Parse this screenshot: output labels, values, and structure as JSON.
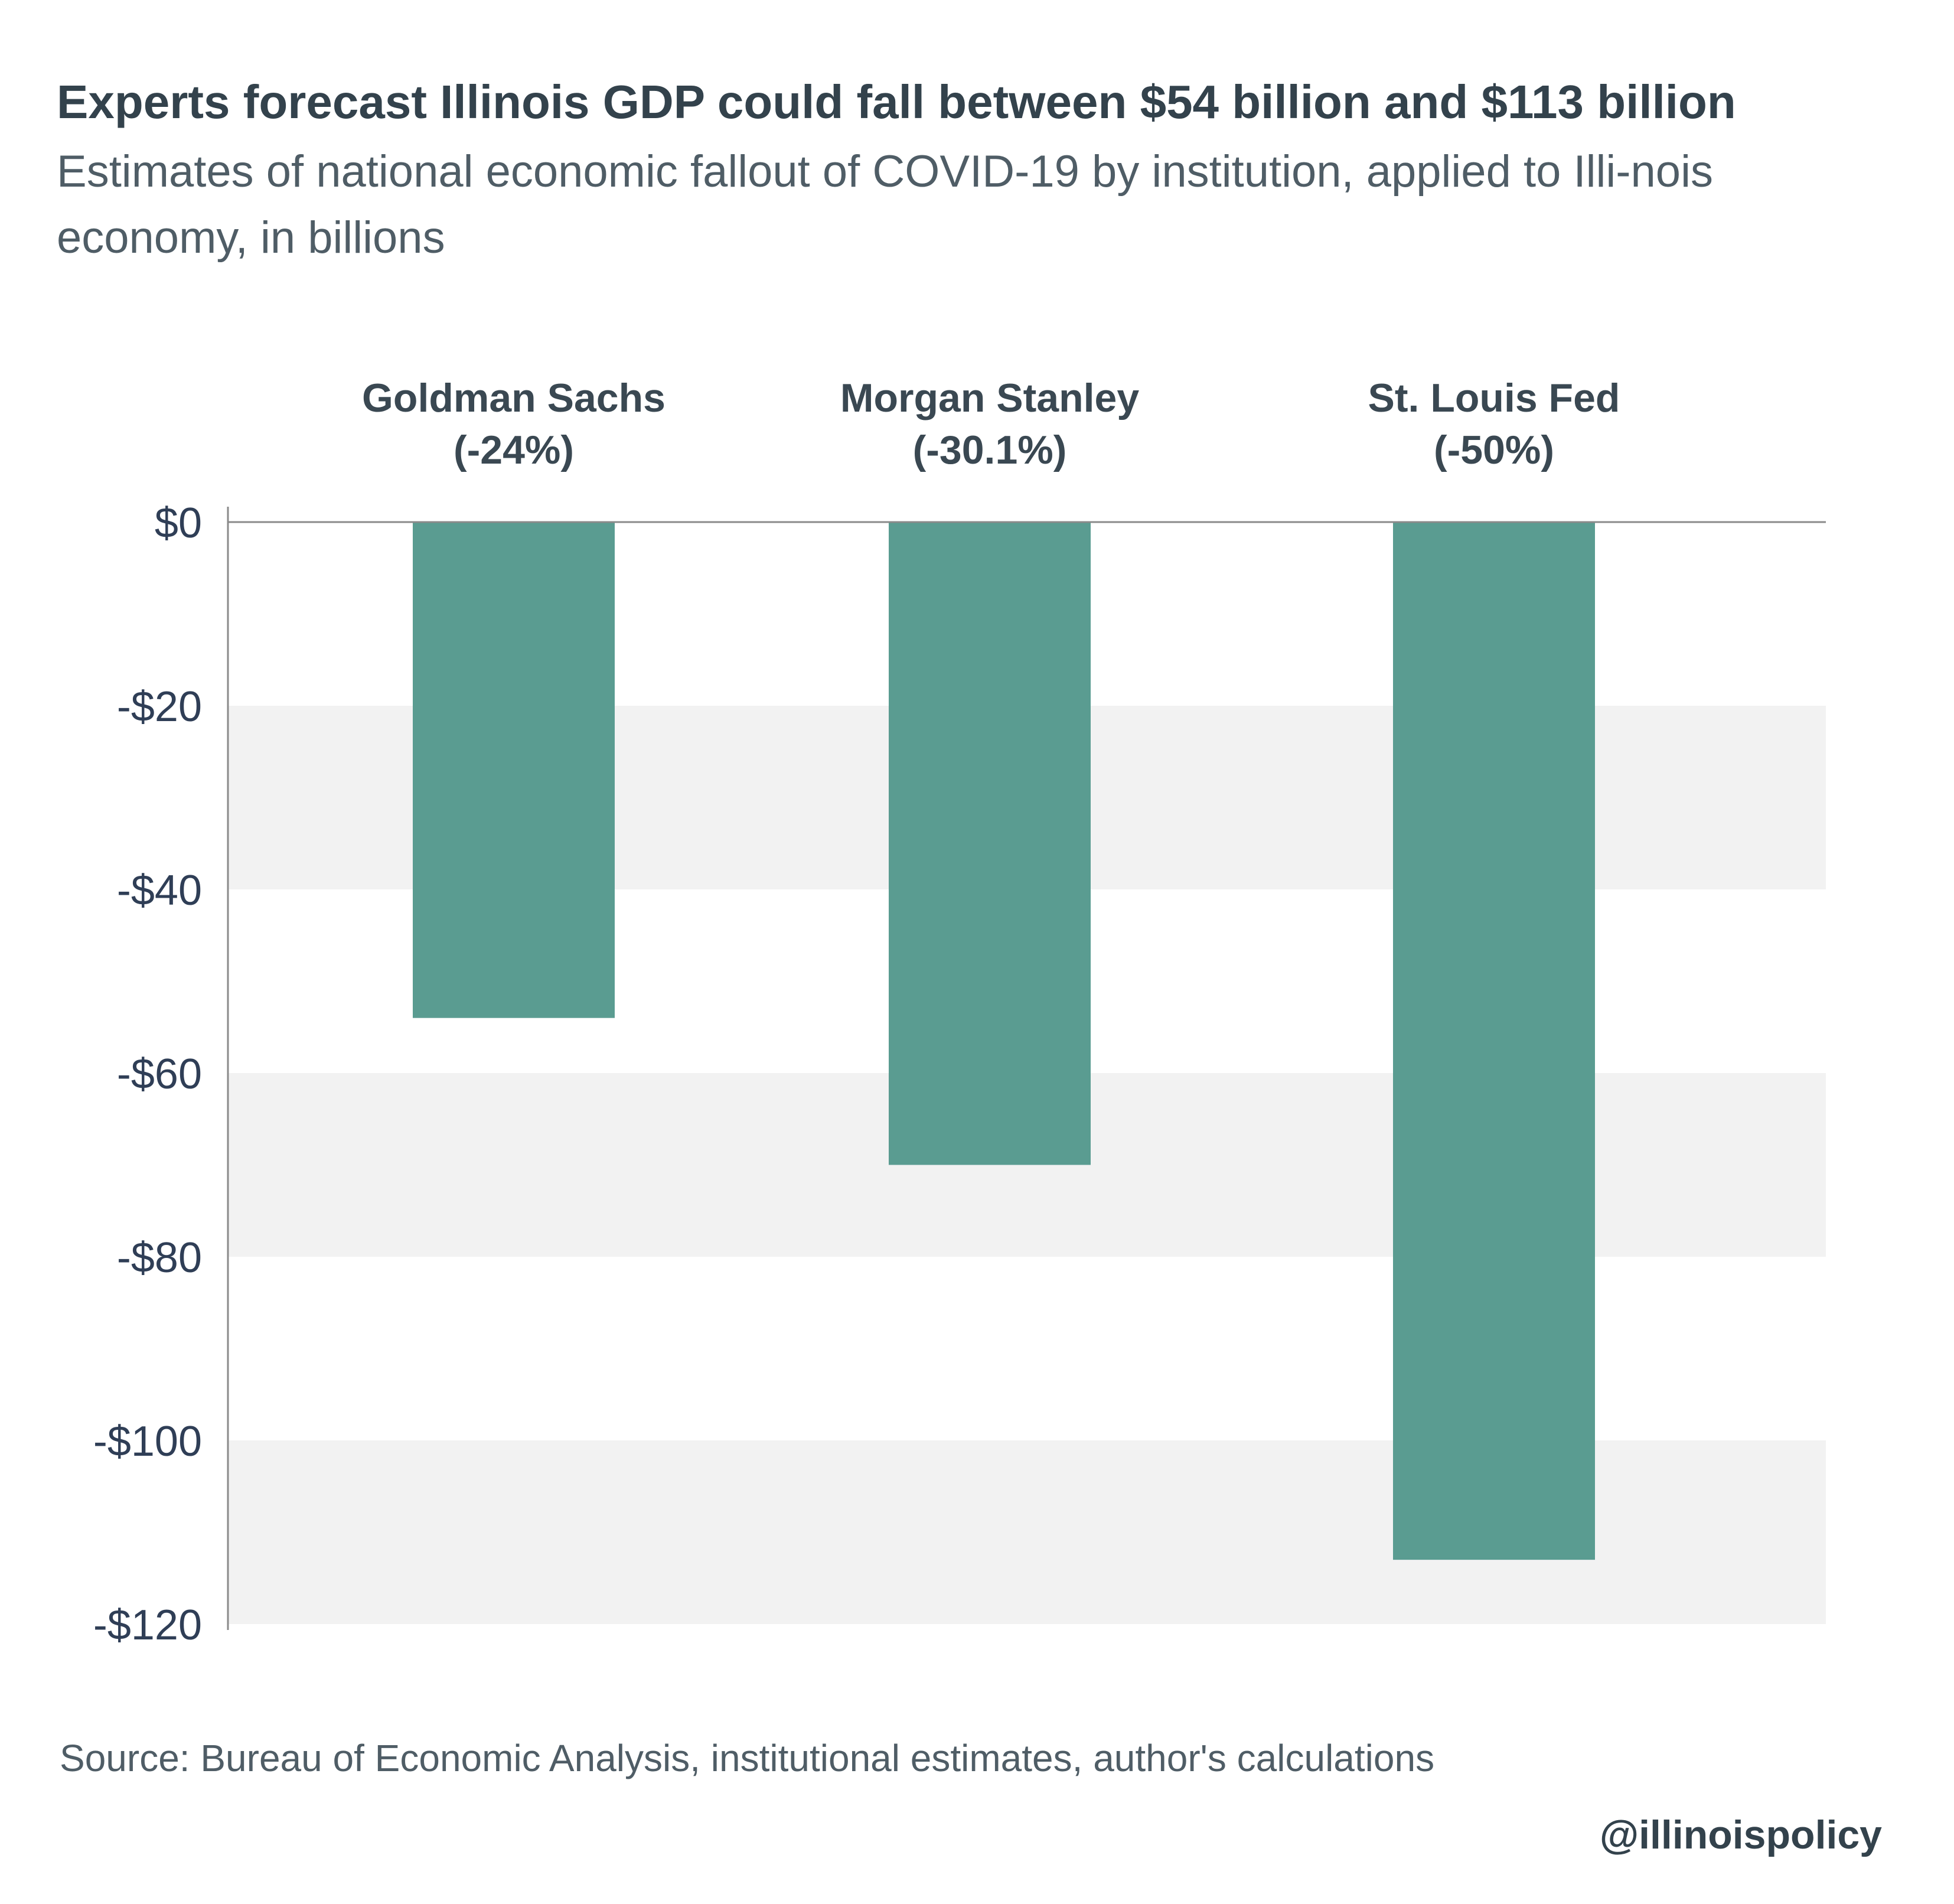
{
  "header": {
    "title": "Experts forecast Illinois GDP could fall between $54 billion and $113 billion",
    "subtitle": "Estimates of national economic fallout of COVID-19 by institution, applied to Illi-nois economy, in billions"
  },
  "footer": {
    "source": "Source: Bureau of Economic Analysis, institutional estimates, author's calculations",
    "handle": "@illinoispolicy"
  },
  "colors": {
    "bar": "#5a9c91",
    "band": "#f2f2f2",
    "axis": "#8a8a8a",
    "text": "#33424c"
  },
  "chart_data": {
    "type": "bar",
    "title": "Experts forecast Illinois GDP could fall between $54 billion and $113 billion",
    "subtitle": "Estimates of national economic fallout of COVID-19 by institution, applied to Illi-nois economy, in billions",
    "categories": [
      "Goldman Sachs",
      "Morgan Stanley",
      "St. Louis Fed"
    ],
    "category_sublabels": [
      "(-24%)",
      "(-30.1%)",
      "(-50%)"
    ],
    "values": [
      -54,
      -70,
      -113
    ],
    "ylim": [
      -120,
      0
    ],
    "yticks": [
      0,
      -20,
      -40,
      -60,
      -80,
      -100,
      -120
    ],
    "ytick_labels": [
      "$0",
      "-$20",
      "-$40",
      "-$60",
      "-$80",
      "-$100",
      "-$120"
    ],
    "xlabel": "",
    "ylabel": "",
    "grid": "alternating horizontal bands",
    "legend": "none",
    "category_label_position": "top"
  }
}
